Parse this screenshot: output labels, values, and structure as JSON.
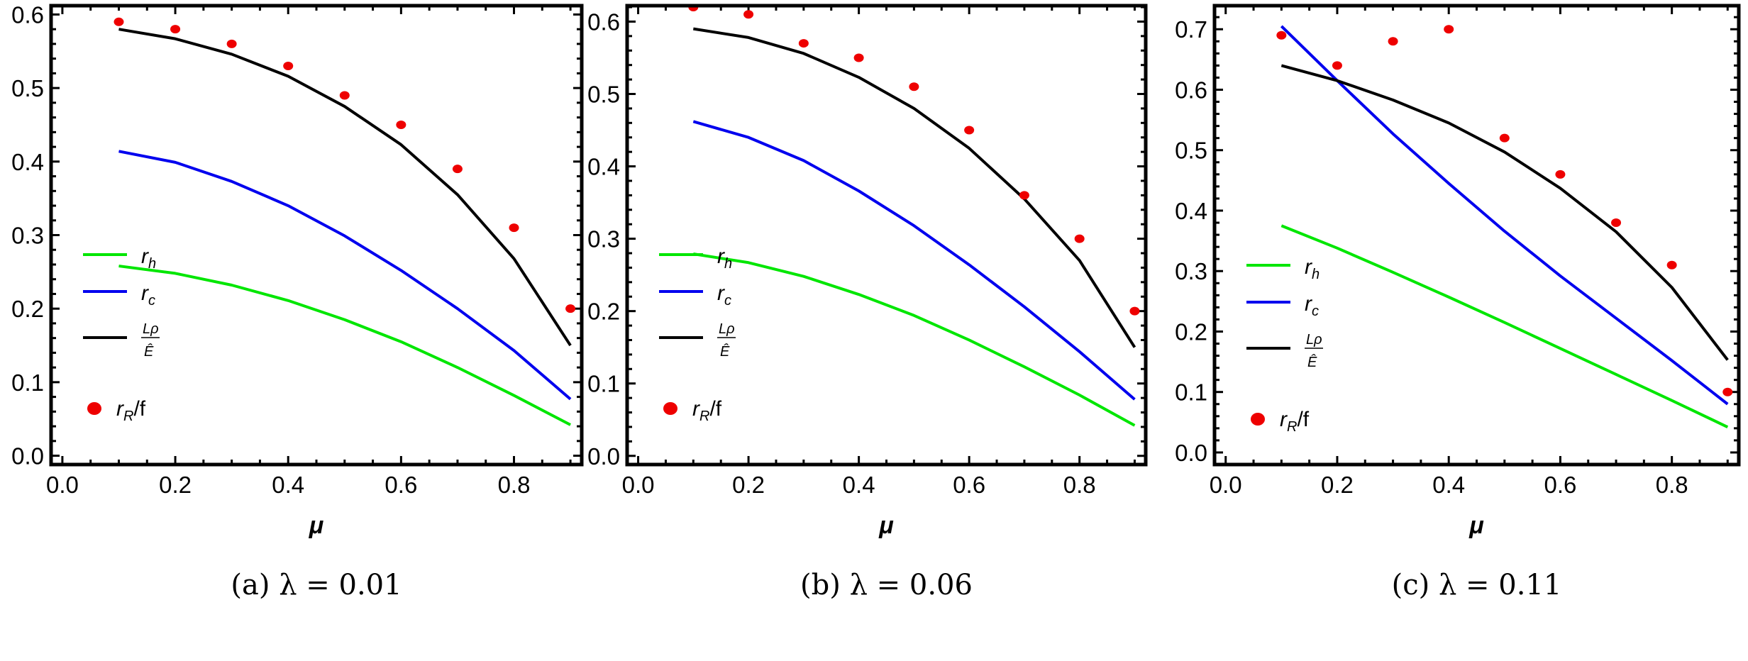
{
  "chart_data": [
    {
      "type": "line",
      "title": "",
      "caption": "(a) λ = 0.01",
      "xlabel": "μ",
      "ylabel": "",
      "xlim": [
        -0.02,
        0.92
      ],
      "ylim": [
        -0.012,
        0.612
      ],
      "xticks": [
        "0.0",
        "0.2",
        "0.4",
        "0.6",
        "0.8"
      ],
      "yticks": [
        "0.0",
        "0.1",
        "0.2",
        "0.3",
        "0.4",
        "0.5",
        "0.6"
      ],
      "x": [
        0.1,
        0.2,
        0.3,
        0.4,
        0.5,
        0.6,
        0.7,
        0.8,
        0.9
      ],
      "series": [
        {
          "name": "r_h",
          "kind": "line",
          "color": "#00e600",
          "values": [
            0.258,
            0.248,
            0.232,
            0.211,
            0.185,
            0.155,
            0.12,
            0.082,
            0.042
          ]
        },
        {
          "name": "r_c",
          "kind": "line",
          "color": "#0000ee",
          "values": [
            0.414,
            0.399,
            0.373,
            0.34,
            0.299,
            0.252,
            0.2,
            0.143,
            0.077
          ]
        },
        {
          "name": "L_ρ/Ê",
          "kind": "line",
          "color": "#000000",
          "values": [
            0.58,
            0.567,
            0.546,
            0.516,
            0.475,
            0.423,
            0.355,
            0.268,
            0.15
          ]
        },
        {
          "name": "r_R/f",
          "kind": "scatter",
          "color": "#ee0000",
          "values": [
            0.59,
            0.58,
            0.56,
            0.53,
            0.49,
            0.45,
            0.39,
            0.31,
            0.2
          ]
        }
      ],
      "legend": "left-middle"
    },
    {
      "type": "line",
      "title": "",
      "caption": "(b) λ = 0.06",
      "xlabel": "μ",
      "ylabel": "",
      "xlim": [
        -0.02,
        0.92
      ],
      "ylim": [
        -0.012,
        0.622
      ],
      "xticks": [
        "0.0",
        "0.2",
        "0.4",
        "0.6",
        "0.8"
      ],
      "yticks": [
        "0.0",
        "0.1",
        "0.2",
        "0.3",
        "0.4",
        "0.5",
        "0.6"
      ],
      "x": [
        0.1,
        0.2,
        0.3,
        0.4,
        0.5,
        0.6,
        0.7,
        0.8,
        0.9
      ],
      "series": [
        {
          "name": "r_h",
          "kind": "line",
          "color": "#00e600",
          "values": [
            0.279,
            0.267,
            0.248,
            0.223,
            0.194,
            0.16,
            0.123,
            0.084,
            0.042
          ]
        },
        {
          "name": "r_c",
          "kind": "line",
          "color": "#0000ee",
          "values": [
            0.462,
            0.44,
            0.408,
            0.366,
            0.318,
            0.264,
            0.206,
            0.144,
            0.078
          ]
        },
        {
          "name": "L_ρ/Ê",
          "kind": "line",
          "color": "#000000",
          "values": [
            0.59,
            0.578,
            0.556,
            0.523,
            0.48,
            0.425,
            0.355,
            0.27,
            0.15
          ]
        },
        {
          "name": "r_R/f",
          "kind": "scatter",
          "color": "#ee0000",
          "values": [
            0.62,
            0.61,
            0.57,
            0.55,
            0.51,
            0.45,
            0.36,
            0.3,
            0.2
          ]
        }
      ],
      "legend": "left-middle"
    },
    {
      "type": "line",
      "title": "",
      "caption": "(c) λ = 0.11",
      "xlabel": "μ",
      "ylabel": "",
      "xlim": [
        -0.02,
        0.92
      ],
      "ylim": [
        -0.02,
        0.739
      ],
      "xticks": [
        "0.0",
        "0.2",
        "0.4",
        "0.6",
        "0.8"
      ],
      "yticks": [
        "0.0",
        "0.1",
        "0.2",
        "0.3",
        "0.4",
        "0.5",
        "0.6",
        "0.7"
      ],
      "x": [
        0.1,
        0.2,
        0.3,
        0.4,
        0.5,
        0.6,
        0.7,
        0.8,
        0.9
      ],
      "series": [
        {
          "name": "r_h",
          "kind": "line",
          "color": "#00e600",
          "values": [
            0.375,
            0.338,
            0.298,
            0.257,
            0.215,
            0.172,
            0.129,
            0.086,
            0.042
          ]
        },
        {
          "name": "r_c",
          "kind": "line",
          "color": "#0000ee",
          "values": [
            0.705,
            0.615,
            0.527,
            0.445,
            0.366,
            0.292,
            0.222,
            0.152,
            0.08
          ]
        },
        {
          "name": "L_ρ/Ê",
          "kind": "line",
          "color": "#000000",
          "values": [
            0.64,
            0.615,
            0.583,
            0.545,
            0.497,
            0.437,
            0.365,
            0.273,
            0.153
          ]
        },
        {
          "name": "r_R/f",
          "kind": "scatter",
          "color": "#ee0000",
          "values": [
            0.69,
            0.64,
            0.68,
            0.7,
            0.52,
            0.46,
            0.38,
            0.31,
            0.1
          ]
        }
      ],
      "legend": "left-middle"
    }
  ]
}
